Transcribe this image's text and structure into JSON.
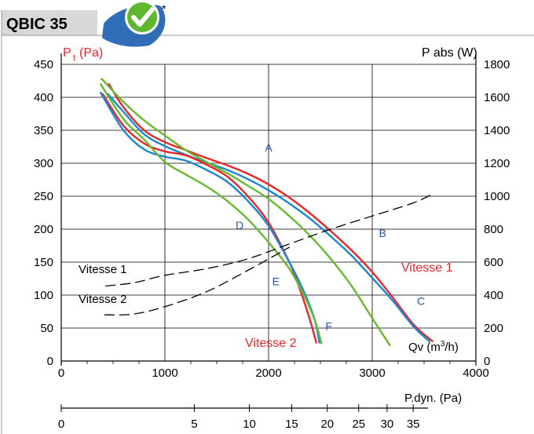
{
  "header": {
    "title": "QBIC 35",
    "badge_star": "*"
  },
  "chart_data": {
    "type": "line",
    "left_axis": {
      "label_main": "P",
      "label_sub": "t",
      "label_unit": "(Pa)",
      "range": [
        0,
        450
      ],
      "ticks": [
        "0",
        "50",
        "100",
        "150",
        "200",
        "250",
        "300",
        "350",
        "400",
        "450"
      ]
    },
    "right_axis": {
      "label": "P abs (W)",
      "range": [
        0,
        1800
      ],
      "ticks": [
        "0",
        "200",
        "400",
        "600",
        "800",
        "1000",
        "1200",
        "1400",
        "1600",
        "1800"
      ]
    },
    "x_axis": {
      "label_main": "Qv (m",
      "label_sup": "3",
      "label_end": "/h)",
      "range": [
        0,
        4000
      ],
      "ticks": [
        "0",
        "1000",
        "2000",
        "3000",
        "4000"
      ]
    },
    "secondary_x_axis": {
      "label": "P.dyn. (Pa)",
      "ticks": [
        "0",
        "5",
        "10",
        "15",
        "20",
        "25",
        "30",
        "35"
      ]
    },
    "grid": true,
    "series": [
      {
        "name": "Vitesse 1",
        "color": "#e8262b",
        "axis": "left",
        "points": [
          [
            460,
            420
          ],
          [
            600,
            385
          ],
          [
            800,
            350
          ],
          [
            1000,
            332
          ],
          [
            1200,
            320
          ],
          [
            1400,
            308
          ],
          [
            1600,
            297
          ],
          [
            1800,
            284
          ],
          [
            2000,
            268
          ],
          [
            2200,
            248
          ],
          [
            2400,
            224
          ],
          [
            2600,
            197
          ],
          [
            2800,
            168
          ],
          [
            3000,
            135
          ],
          [
            3200,
            96
          ],
          [
            3400,
            55
          ],
          [
            3580,
            30
          ]
        ]
      },
      {
        "name": "",
        "color": "#1b87cf",
        "axis": "left",
        "points": [
          [
            450,
            405
          ],
          [
            600,
            378
          ],
          [
            800,
            344
          ],
          [
            1000,
            326
          ],
          [
            1200,
            313
          ],
          [
            1400,
            301
          ],
          [
            1600,
            290
          ],
          [
            1800,
            276
          ],
          [
            2000,
            259
          ],
          [
            2200,
            239
          ],
          [
            2400,
            216
          ],
          [
            2600,
            189
          ],
          [
            2800,
            160
          ],
          [
            3000,
            126
          ],
          [
            3200,
            91
          ],
          [
            3400,
            52
          ],
          [
            3550,
            30
          ]
        ]
      },
      {
        "name": "Vitesse 2",
        "color": "#e8262b",
        "axis": "left",
        "points": [
          [
            400,
            405
          ],
          [
            600,
            357
          ],
          [
            800,
            330
          ],
          [
            1000,
            318
          ],
          [
            1200,
            312
          ],
          [
            1400,
            298
          ],
          [
            1600,
            280
          ],
          [
            1800,
            250
          ],
          [
            2000,
            210
          ],
          [
            2200,
            150
          ],
          [
            2300,
            110
          ],
          [
            2400,
            62
          ],
          [
            2460,
            28
          ]
        ]
      },
      {
        "name": "",
        "color": "#1b87cf",
        "axis": "left",
        "points": [
          [
            380,
            407
          ],
          [
            600,
            350
          ],
          [
            800,
            321
          ],
          [
            1000,
            310
          ],
          [
            1200,
            304
          ],
          [
            1400,
            290
          ],
          [
            1600,
            272
          ],
          [
            1800,
            243
          ],
          [
            2000,
            205
          ],
          [
            2200,
            150
          ],
          [
            2350,
            102
          ],
          [
            2450,
            60
          ],
          [
            2490,
            28
          ]
        ]
      },
      {
        "name": "",
        "color": "#67b930",
        "axis": "left",
        "points": [
          [
            390,
            428
          ],
          [
            600,
            393
          ],
          [
            800,
            365
          ],
          [
            1000,
            342
          ],
          [
            1200,
            320
          ],
          [
            1400,
            302
          ],
          [
            1600,
            285
          ],
          [
            1800,
            266
          ],
          [
            2000,
            246
          ],
          [
            2200,
            220
          ],
          [
            2400,
            190
          ],
          [
            2600,
            155
          ],
          [
            2800,
            114
          ],
          [
            3000,
            65
          ],
          [
            3170,
            24
          ]
        ]
      },
      {
        "name": "",
        "color": "#67b930",
        "axis": "left",
        "points": [
          [
            380,
            420
          ],
          [
            600,
            367
          ],
          [
            800,
            336
          ],
          [
            1000,
            302
          ],
          [
            1200,
            283
          ],
          [
            1400,
            265
          ],
          [
            1600,
            243
          ],
          [
            1800,
            215
          ],
          [
            2000,
            180
          ],
          [
            2200,
            140
          ],
          [
            2350,
            97
          ],
          [
            2450,
            60
          ],
          [
            2510,
            27
          ]
        ]
      },
      {
        "name": "Vitesse 1",
        "color": "#000000",
        "dash": true,
        "axis": "right",
        "points": [
          [
            430,
            455
          ],
          [
            700,
            475
          ],
          [
            1000,
            520
          ],
          [
            1400,
            560
          ],
          [
            1800,
            620
          ],
          [
            2200,
            710
          ],
          [
            2600,
            800
          ],
          [
            3000,
            880
          ],
          [
            3400,
            960
          ],
          [
            3600,
            1020
          ]
        ]
      },
      {
        "name": "Vitesse 2",
        "color": "#000000",
        "dash": true,
        "axis": "right",
        "points": [
          [
            420,
            280
          ],
          [
            700,
            285
          ],
          [
            1000,
            330
          ],
          [
            1400,
            420
          ],
          [
            1800,
            550
          ],
          [
            2200,
            690
          ]
        ]
      }
    ],
    "point_labels": [
      {
        "text": "A",
        "x": 2000,
        "y": 318
      },
      {
        "text": "B",
        "x": 3100,
        "y": 188
      },
      {
        "text": "C",
        "x": 3470,
        "y": 85
      },
      {
        "text": "D",
        "x": 1720,
        "y": 200
      },
      {
        "text": "E",
        "x": 2070,
        "y": 115
      },
      {
        "text": "F",
        "x": 2580,
        "y": 47
      }
    ],
    "annotations": {
      "vitesse1_curve": "Vitesse 1",
      "vitesse2_curve": "Vitesse 2",
      "vitesse1_power": "Vitesse 1",
      "vitesse2_power": "Vitesse 2"
    }
  }
}
